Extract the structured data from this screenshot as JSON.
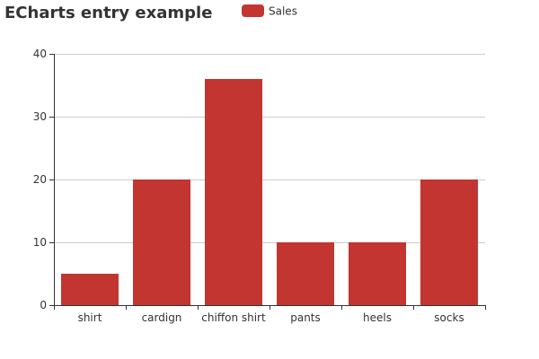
{
  "chart_data": {
    "type": "bar",
    "title": "ECharts entry example",
    "legend": {
      "entries": [
        "Sales"
      ],
      "placement": "top-center"
    },
    "categories": [
      "shirt",
      "cardign",
      "chiffon shirt",
      "pants",
      "heels",
      "socks"
    ],
    "series": [
      {
        "name": "Sales",
        "values": [
          5,
          20,
          36,
          10,
          10,
          20
        ],
        "color": "#c23531"
      }
    ],
    "ylim": [
      0,
      40
    ],
    "yticks": [
      0,
      10,
      20,
      30,
      40
    ],
    "grid": true,
    "colors": {
      "bar": "#c23531",
      "grid": "#cccccc",
      "axis": "#333333",
      "text": "#333333"
    }
  }
}
